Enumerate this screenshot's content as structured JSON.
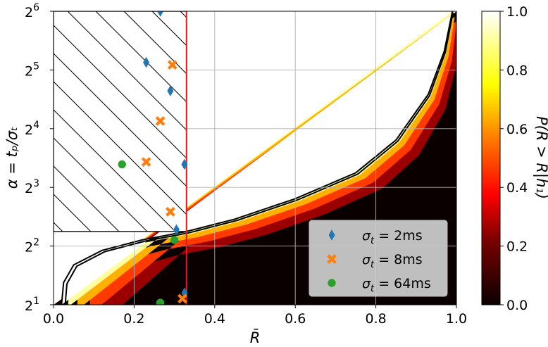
{
  "chart_data": {
    "type": "heatmap",
    "xlabel": "R̄",
    "ylabel": "α = tₚ/σₜ",
    "xlim": [
      0.0,
      1.0
    ],
    "ylim_log2": [
      1,
      6
    ],
    "yscale": "log2",
    "x_ticks": [
      "0.0",
      "0.2",
      "0.4",
      "0.6",
      "0.8",
      "1.0"
    ],
    "y_ticks": [
      {
        "base": "2",
        "exp": "1"
      },
      {
        "base": "2",
        "exp": "2"
      },
      {
        "base": "2",
        "exp": "3"
      },
      {
        "base": "2",
        "exp": "4"
      },
      {
        "base": "2",
        "exp": "5"
      },
      {
        "base": "2",
        "exp": "6"
      }
    ],
    "grid": true,
    "colormap": "hot",
    "colorbar": {
      "label": "P(R > R̄|h₁)",
      "ticks": [
        "0.0",
        "0.2",
        "0.4",
        "0.6",
        "0.8",
        "1.0"
      ],
      "range": [
        0.0,
        1.0
      ]
    },
    "threshold_line_x": 0.33,
    "threshold_line_color": "#e41a1c",
    "hatched_region": {
      "x_range": [
        0.0,
        0.33
      ],
      "alpha_range": [
        4.75,
        64
      ]
    },
    "boundary": {
      "description": "white contour line; P(R>R̄)=1 on the left, 0 on the right",
      "points": [
        [
          0.02,
          2.0
        ],
        [
          0.025,
          2.6
        ],
        [
          0.05,
          3.2
        ],
        [
          0.12,
          3.8
        ],
        [
          0.22,
          4.3
        ],
        [
          0.33,
          4.75
        ],
        [
          0.45,
          5.5
        ],
        [
          0.6,
          7.0
        ],
        [
          0.75,
          9.5
        ],
        [
          0.85,
          14.0
        ],
        [
          0.93,
          24.0
        ],
        [
          0.97,
          40.0
        ],
        [
          0.99,
          64.0
        ]
      ]
    },
    "series": [
      {
        "name": "σₜ = 2ms",
        "label_prefix": "σ",
        "label_sub": "t",
        "label_value": " = 2ms",
        "marker": "diamond",
        "color": "#1f77b4",
        "points": [
          [
            0.265,
            64.0
          ],
          [
            0.23,
            35.0
          ],
          [
            0.29,
            25.0
          ],
          [
            0.325,
            10.5
          ],
          [
            0.305,
            4.85
          ],
          [
            0.325,
            2.3
          ]
        ]
      },
      {
        "name": "σₜ = 8ms",
        "label_prefix": "σ",
        "label_sub": "t",
        "label_value": " = 8ms",
        "marker": "x",
        "color": "#ff7f0e",
        "points": [
          [
            0.295,
            34.0
          ],
          [
            0.265,
            17.5
          ],
          [
            0.23,
            10.8
          ],
          [
            0.29,
            6.0
          ],
          [
            0.32,
            2.15
          ]
        ]
      },
      {
        "name": "σₜ = 64ms",
        "label_prefix": "σ",
        "label_sub": "t",
        "label_value": " = 64ms",
        "marker": "circle",
        "color": "#2ca02c",
        "points": [
          [
            0.17,
            10.5
          ],
          [
            0.3,
            4.3
          ],
          [
            0.265,
            2.05
          ]
        ]
      }
    ],
    "legend_position": "lower-right"
  }
}
